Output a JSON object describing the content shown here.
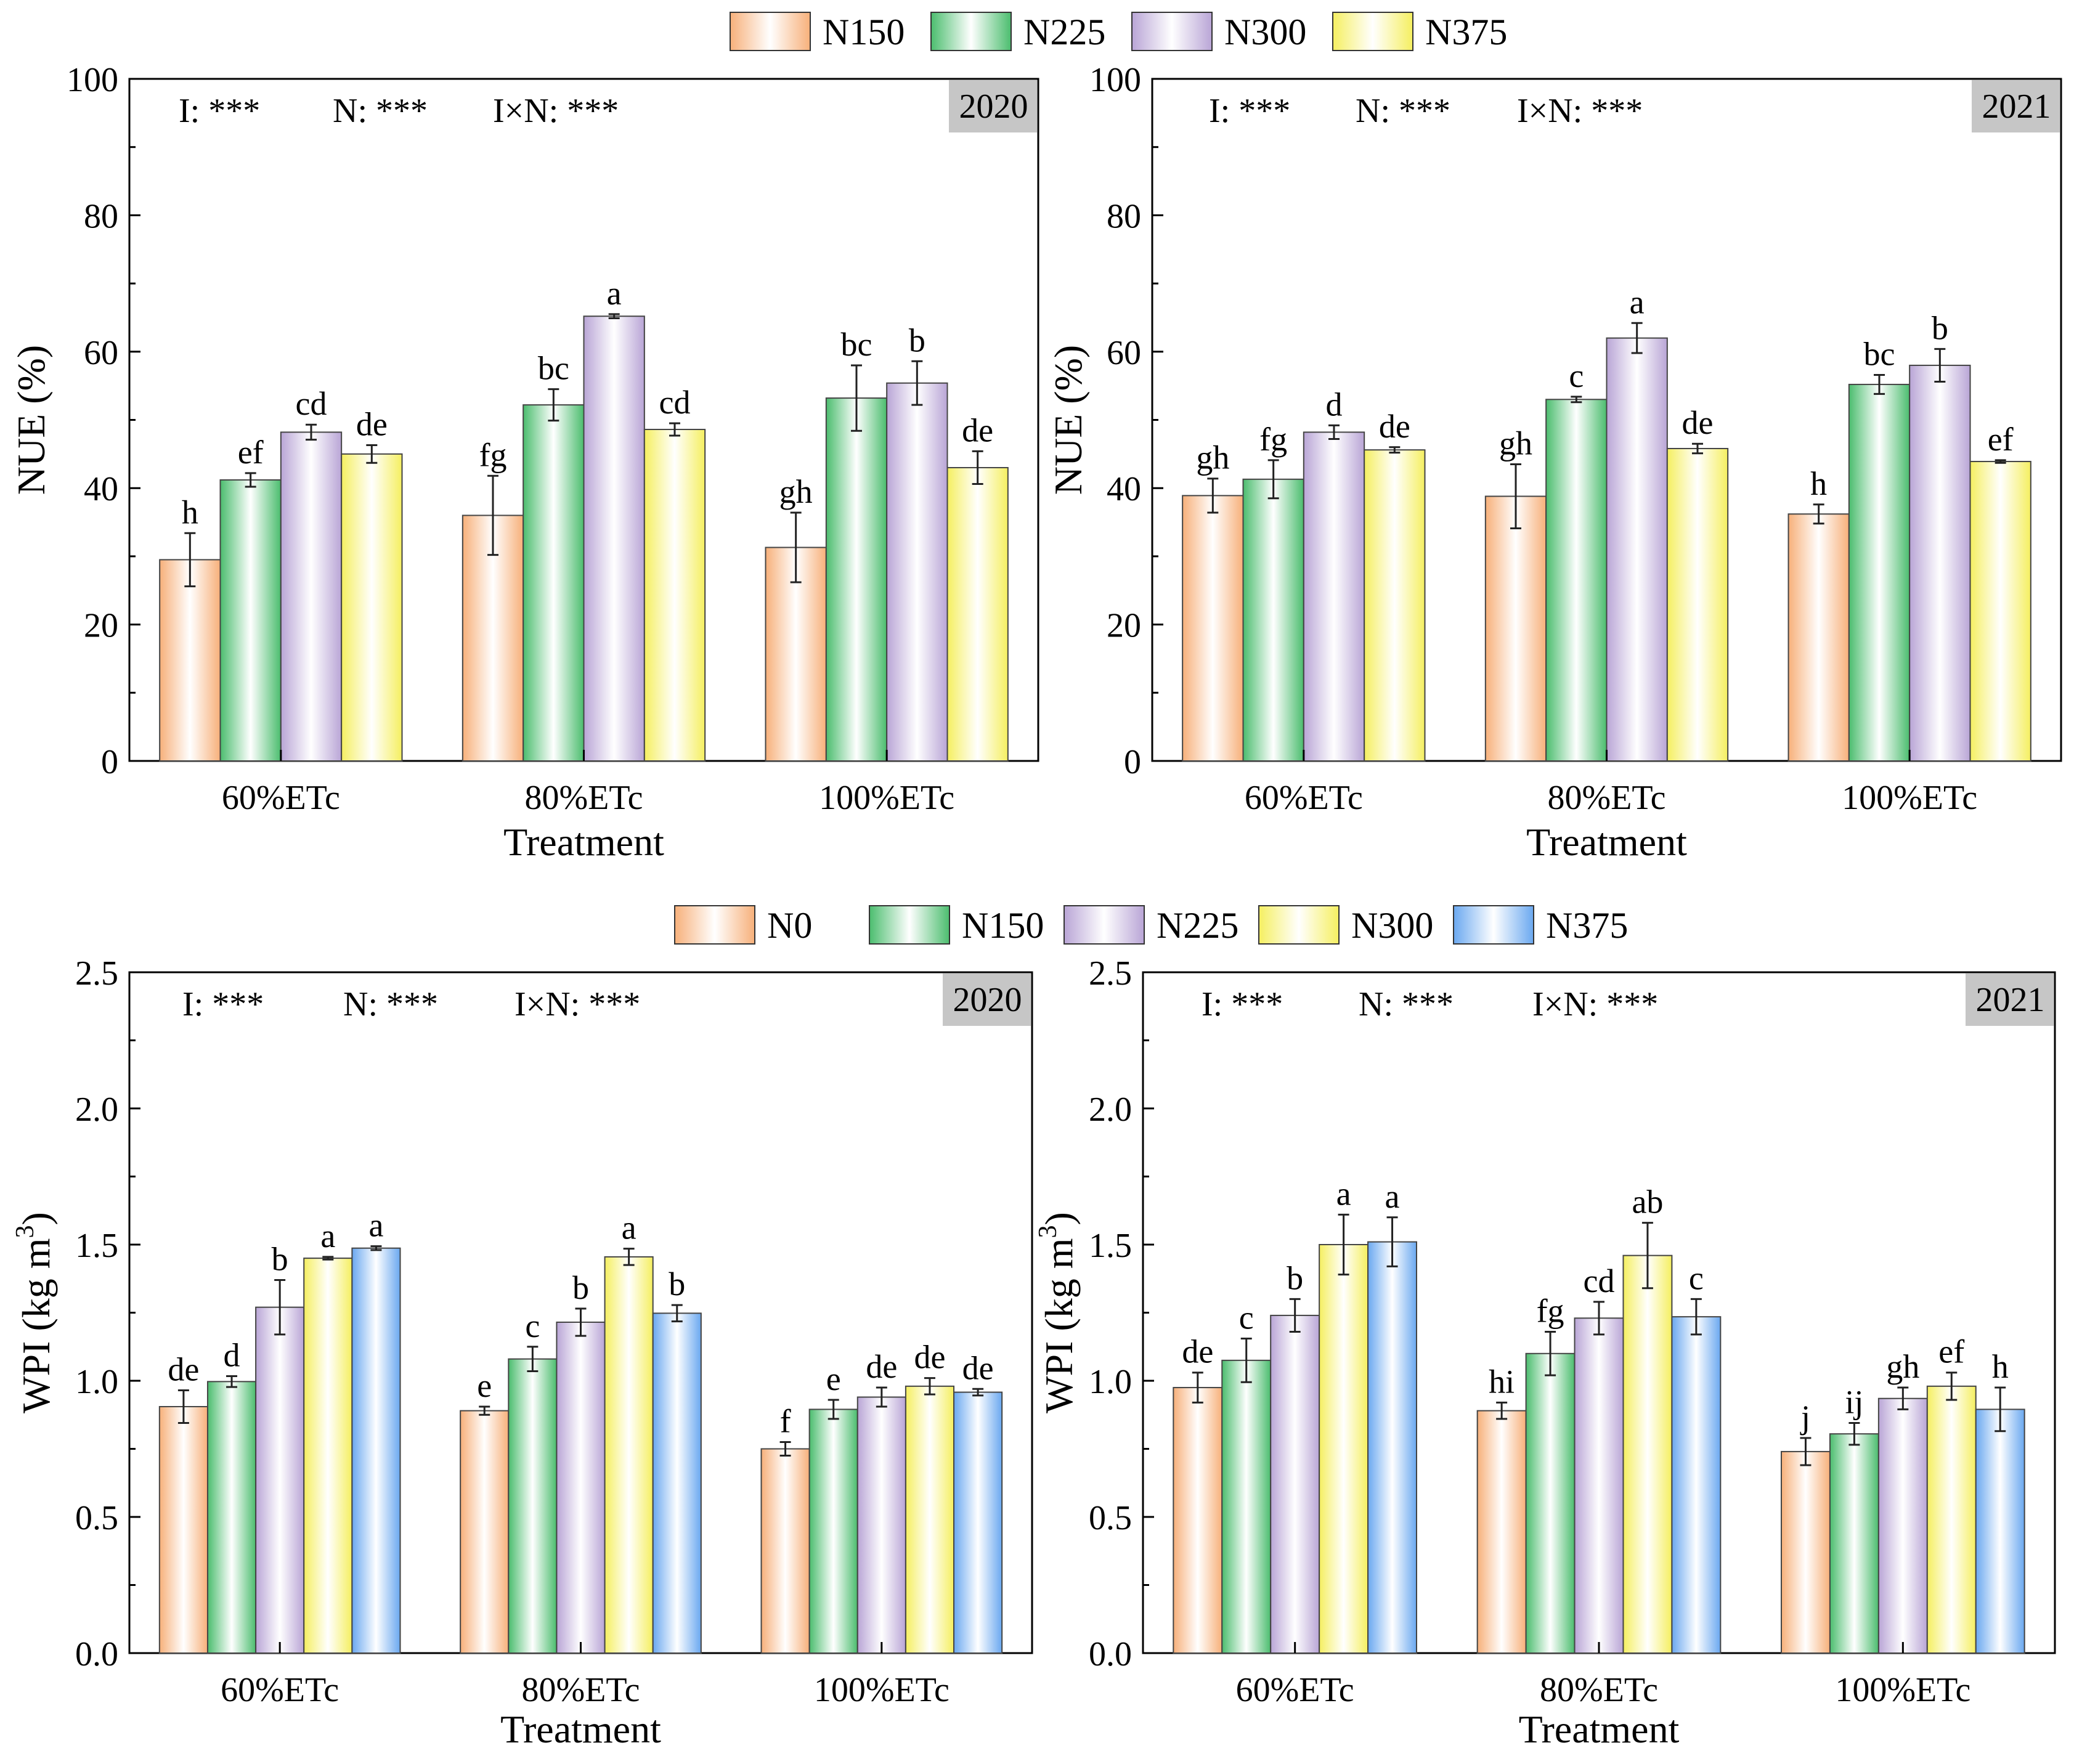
{
  "colors": {
    "N0": "#f7b07a",
    "N150_nue": "#f7b07a",
    "N150": "#4bbd6e",
    "N225": "#b9a5d6",
    "N300": "#f5ef60",
    "N375": "#6aa8f0",
    "year_box": "#c6c6c6"
  },
  "legends": {
    "top": [
      {
        "label": "N150",
        "color": "#f7b07a"
      },
      {
        "label": "N225",
        "color": "#4bbd6e"
      },
      {
        "label": "N300",
        "color": "#b9a5d6"
      },
      {
        "label": "N375",
        "color": "#f5ef60"
      }
    ],
    "bottom": [
      {
        "label": "N0",
        "color": "#f7b07a"
      },
      {
        "label": "N150",
        "color": "#4bbd6e"
      },
      {
        "label": "N225",
        "color": "#b9a5d6"
      },
      {
        "label": "N300",
        "color": "#f5ef60"
      },
      {
        "label": "N375",
        "color": "#6aa8f0"
      }
    ]
  },
  "chart_data": [
    {
      "id": "nue-2020",
      "type": "bar",
      "year": "2020",
      "stats": [
        "I: ***",
        "N: ***",
        "I×N: ***"
      ],
      "ylabel": "NUE (%)",
      "xlabel": "Treatment",
      "categories": [
        "60%ETc",
        "80%ETc",
        "100%ETc"
      ],
      "ylim": [
        0,
        100
      ],
      "yticks": [
        "0",
        "20",
        "40",
        "60",
        "80",
        "100"
      ],
      "yticks_values": [
        0,
        20,
        40,
        60,
        80,
        100
      ],
      "minor_step": 10,
      "series": [
        {
          "name": "N150",
          "color": "#f7b07a",
          "values": [
            29.5,
            36.0,
            31.3
          ],
          "errors": [
            3.9,
            5.8,
            5.1
          ],
          "letters": [
            "h",
            "fg",
            "gh"
          ]
        },
        {
          "name": "N225",
          "color": "#4bbd6e",
          "values": [
            41.2,
            52.2,
            53.2
          ],
          "errors": [
            1.0,
            2.3,
            4.8
          ],
          "letters": [
            "ef",
            "bc",
            "bc"
          ]
        },
        {
          "name": "N300",
          "color": "#b9a5d6",
          "values": [
            48.2,
            65.2,
            55.4
          ],
          "errors": [
            1.1,
            0.3,
            3.2
          ],
          "letters": [
            "cd",
            "a",
            "b"
          ]
        },
        {
          "name": "N375",
          "color": "#f5ef60",
          "values": [
            45.0,
            48.6,
            43.0
          ],
          "errors": [
            1.3,
            0.9,
            2.4
          ],
          "letters": [
            "de",
            "cd",
            "de"
          ]
        }
      ]
    },
    {
      "id": "nue-2021",
      "type": "bar",
      "year": "2021",
      "stats": [
        "I: ***",
        "N: ***",
        "I×N: ***"
      ],
      "ylabel": "NUE (%)",
      "xlabel": "Treatment",
      "categories": [
        "60%ETc",
        "80%ETc",
        "100%ETc"
      ],
      "ylim": [
        0,
        100
      ],
      "yticks": [
        "0",
        "20",
        "40",
        "60",
        "80",
        "100"
      ],
      "yticks_values": [
        0,
        20,
        40,
        60,
        80,
        100
      ],
      "minor_step": 10,
      "series": [
        {
          "name": "N150",
          "color": "#f7b07a",
          "values": [
            38.9,
            38.8,
            36.2
          ],
          "errors": [
            2.5,
            4.7,
            1.4
          ],
          "letters": [
            "gh",
            "gh",
            "h"
          ]
        },
        {
          "name": "N225",
          "color": "#4bbd6e",
          "values": [
            41.3,
            53.0,
            55.2
          ],
          "errors": [
            2.8,
            0.4,
            1.4
          ],
          "letters": [
            "fg",
            "c",
            "bc"
          ]
        },
        {
          "name": "N300",
          "color": "#b9a5d6",
          "values": [
            48.2,
            62.0,
            58.0
          ],
          "errors": [
            1.0,
            2.2,
            2.4
          ],
          "letters": [
            "d",
            "a",
            "b"
          ]
        },
        {
          "name": "N375",
          "color": "#f5ef60",
          "values": [
            45.6,
            45.8,
            43.9
          ],
          "errors": [
            0.4,
            0.7,
            0.2
          ],
          "letters": [
            "de",
            "de",
            "ef"
          ]
        }
      ]
    },
    {
      "id": "wpi-2020",
      "type": "bar",
      "year": "2020",
      "stats": [
        "I: ***",
        "N: ***",
        "I×N: ***"
      ],
      "ylabel": "WPI (kg m",
      "ylabel_sup": "3",
      "ylabel_end": ")",
      "xlabel": "Treatment",
      "categories": [
        "60%ETc",
        "80%ETc",
        "100%ETc"
      ],
      "ylim": [
        0,
        2.5
      ],
      "yticks": [
        "0.0",
        "0.5",
        "1.0",
        "1.5",
        "2.0",
        "2.5"
      ],
      "yticks_values": [
        0,
        0.5,
        1.0,
        1.5,
        2.0,
        2.5
      ],
      "minor_step": 0.25,
      "series": [
        {
          "name": "N0",
          "color": "#f7b07a",
          "values": [
            0.905,
            0.89,
            0.75
          ],
          "errors": [
            0.06,
            0.015,
            0.025
          ],
          "letters": [
            "de",
            "e",
            "f"
          ]
        },
        {
          "name": "N150",
          "color": "#4bbd6e",
          "values": [
            0.997,
            1.08,
            0.895
          ],
          "errors": [
            0.02,
            0.045,
            0.035
          ],
          "letters": [
            "d",
            "c",
            "e"
          ]
        },
        {
          "name": "N225",
          "color": "#b9a5d6",
          "values": [
            1.27,
            1.215,
            0.94
          ],
          "errors": [
            0.1,
            0.05,
            0.035
          ],
          "letters": [
            "b",
            "b",
            "de"
          ]
        },
        {
          "name": "N300",
          "color": "#f5ef60",
          "values": [
            1.45,
            1.455,
            0.98
          ],
          "errors": [
            0.005,
            0.03,
            0.03
          ],
          "letters": [
            "a",
            "a",
            "de"
          ]
        },
        {
          "name": "N375",
          "color": "#6aa8f0",
          "values": [
            1.487,
            1.248,
            0.958
          ],
          "errors": [
            0.007,
            0.03,
            0.012
          ],
          "letters": [
            "a",
            "b",
            "de"
          ]
        }
      ]
    },
    {
      "id": "wpi-2021",
      "type": "bar",
      "year": "2021",
      "stats": [
        "I: ***",
        "N: ***",
        "I×N: ***"
      ],
      "ylabel": "WPI (kg m",
      "ylabel_sup": "3",
      "ylabel_end": ")",
      "xlabel": "Treatment",
      "categories": [
        "60%ETc",
        "80%ETc",
        "100%ETc"
      ],
      "ylim": [
        0,
        2.5
      ],
      "yticks": [
        "0.0",
        "0.5",
        "1.0",
        "1.5",
        "2.0",
        "2.5"
      ],
      "yticks_values": [
        0,
        0.5,
        1.0,
        1.5,
        2.0,
        2.5
      ],
      "minor_step": 0.25,
      "series": [
        {
          "name": "N0",
          "color": "#f7b07a",
          "values": [
            0.975,
            0.89,
            0.74
          ],
          "errors": [
            0.055,
            0.03,
            0.05
          ],
          "letters": [
            "de",
            "hi",
            "j"
          ]
        },
        {
          "name": "N150",
          "color": "#4bbd6e",
          "values": [
            1.075,
            1.1,
            0.805
          ],
          "errors": [
            0.08,
            0.08,
            0.04
          ],
          "letters": [
            "c",
            "fg",
            "ij"
          ]
        },
        {
          "name": "N225",
          "color": "#b9a5d6",
          "values": [
            1.24,
            1.23,
            0.935
          ],
          "errors": [
            0.06,
            0.06,
            0.04
          ],
          "letters": [
            "b",
            "cd",
            "gh"
          ]
        },
        {
          "name": "N300",
          "color": "#f5ef60",
          "values": [
            1.5,
            1.46,
            0.98
          ],
          "errors": [
            0.11,
            0.12,
            0.05
          ],
          "letters": [
            "a",
            "ab",
            "ef"
          ]
        },
        {
          "name": "N375",
          "color": "#6aa8f0",
          "values": [
            1.51,
            1.235,
            0.895
          ],
          "errors": [
            0.09,
            0.065,
            0.08
          ],
          "letters": [
            "a",
            "c",
            "h"
          ]
        }
      ]
    }
  ]
}
